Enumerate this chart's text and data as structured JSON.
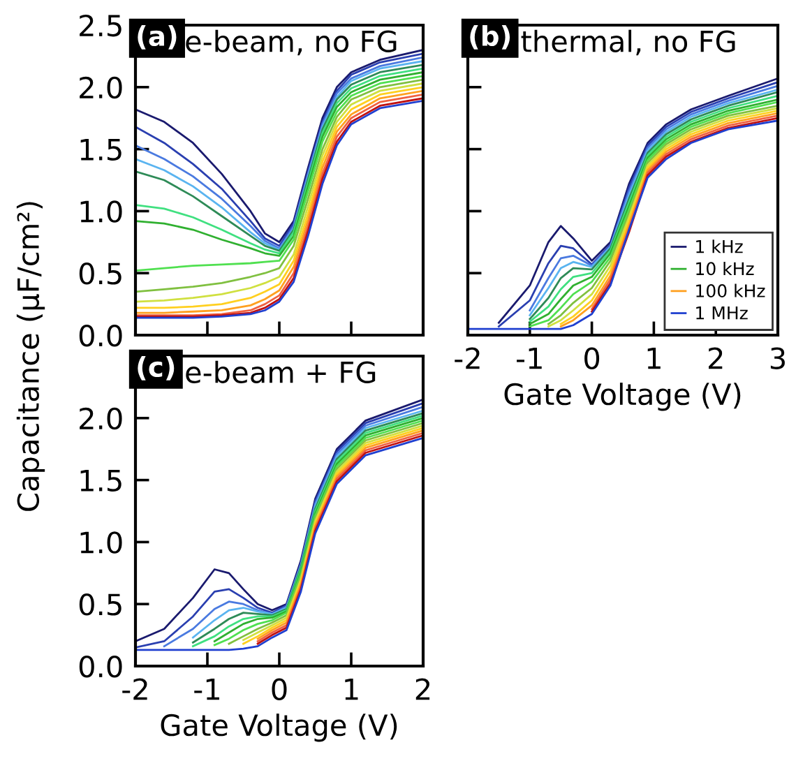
{
  "chart_data": [
    {
      "type": "line",
      "title": "e-beam, no FG",
      "annotations": [
        "(a)"
      ],
      "ylabel": "Capacitance (µF/cm²)",
      "tick_labels": "y",
      "grid": false,
      "legend": false,
      "x": [
        -2,
        -1.6,
        -1.2,
        -0.8,
        -0.4,
        -0.2,
        0,
        0.2,
        0.4,
        0.6,
        0.8,
        1.0,
        1.4,
        2.0
      ],
      "xlim": [
        -2,
        2
      ],
      "xticks": [
        -2,
        -1,
        0,
        1,
        2
      ],
      "ylim": [
        0,
        2.5
      ],
      "yticks": [
        {
          "value": 0,
          "label": "0.0"
        },
        {
          "value": 0.5,
          "label": "0.5"
        },
        {
          "value": 1,
          "label": "1.0"
        },
        {
          "value": 1.5,
          "label": "1.5"
        },
        {
          "value": 2,
          "label": "2.0"
        },
        {
          "value": 2.5,
          "label": "2.5"
        }
      ],
      "series": [
        {
          "color": "#1a1a6e",
          "values": [
            1.82,
            1.72,
            1.55,
            1.3,
            1.0,
            0.82,
            0.75,
            0.92,
            1.35,
            1.75,
            2.0,
            2.12,
            2.22,
            2.3
          ]
        },
        {
          "color": "#2a3fb0",
          "values": [
            1.68,
            1.55,
            1.38,
            1.18,
            0.92,
            0.78,
            0.72,
            0.9,
            1.32,
            1.72,
            1.97,
            2.1,
            2.2,
            2.27
          ]
        },
        {
          "color": "#4a7ae0",
          "values": [
            1.53,
            1.42,
            1.28,
            1.1,
            0.88,
            0.76,
            0.7,
            0.88,
            1.3,
            1.7,
            1.95,
            2.07,
            2.17,
            2.24
          ]
        },
        {
          "color": "#5ab4f0",
          "values": [
            1.42,
            1.33,
            1.2,
            1.03,
            0.83,
            0.74,
            0.69,
            0.86,
            1.28,
            1.68,
            1.92,
            2.05,
            2.15,
            2.21
          ]
        },
        {
          "color": "#2e8b57",
          "values": [
            1.32,
            1.25,
            1.12,
            0.96,
            0.8,
            0.72,
            0.68,
            0.85,
            1.26,
            1.66,
            1.9,
            2.02,
            2.12,
            2.18
          ]
        },
        {
          "color": "#40e080",
          "values": [
            1.05,
            1.02,
            0.95,
            0.85,
            0.74,
            0.69,
            0.66,
            0.83,
            1.23,
            1.63,
            1.87,
            1.99,
            2.09,
            2.15
          ]
        },
        {
          "color": "#30b030",
          "values": [
            0.92,
            0.9,
            0.85,
            0.77,
            0.7,
            0.66,
            0.64,
            0.8,
            1.2,
            1.6,
            1.84,
            1.96,
            2.06,
            2.12
          ]
        },
        {
          "color": "#50e050",
          "values": [
            0.52,
            0.54,
            0.56,
            0.57,
            0.58,
            0.59,
            0.6,
            0.77,
            1.16,
            1.56,
            1.8,
            1.93,
            2.03,
            2.09
          ]
        },
        {
          "color": "#80c040",
          "values": [
            0.35,
            0.37,
            0.39,
            0.42,
            0.47,
            0.5,
            0.54,
            0.72,
            1.1,
            1.5,
            1.76,
            1.9,
            2.0,
            2.06
          ]
        },
        {
          "color": "#d0e040",
          "values": [
            0.27,
            0.28,
            0.3,
            0.33,
            0.38,
            0.42,
            0.47,
            0.65,
            1.04,
            1.45,
            1.72,
            1.86,
            1.97,
            2.03
          ]
        },
        {
          "color": "#ffd020",
          "values": [
            0.22,
            0.22,
            0.23,
            0.25,
            0.3,
            0.35,
            0.41,
            0.6,
            0.98,
            1.4,
            1.68,
            1.82,
            1.94,
            2.0
          ]
        },
        {
          "color": "#ffa020",
          "values": [
            0.18,
            0.18,
            0.19,
            0.2,
            0.24,
            0.29,
            0.36,
            0.55,
            0.93,
            1.35,
            1.64,
            1.78,
            1.91,
            1.97
          ]
        },
        {
          "color": "#f06040",
          "values": [
            0.16,
            0.16,
            0.16,
            0.17,
            0.2,
            0.25,
            0.32,
            0.5,
            0.88,
            1.3,
            1.6,
            1.75,
            1.88,
            1.94
          ]
        },
        {
          "color": "#c01010",
          "values": [
            0.15,
            0.15,
            0.15,
            0.16,
            0.18,
            0.22,
            0.29,
            0.46,
            0.84,
            1.26,
            1.56,
            1.72,
            1.85,
            1.91
          ]
        },
        {
          "color": "#2040d0",
          "values": [
            0.14,
            0.14,
            0.14,
            0.15,
            0.17,
            0.2,
            0.27,
            0.43,
            0.8,
            1.22,
            1.53,
            1.7,
            1.83,
            1.89
          ]
        }
      ]
    },
    {
      "type": "line",
      "title": "thermal, no FG",
      "annotations": [
        "(b)"
      ],
      "xlabel": "Gate Voltage (V)",
      "tick_labels": "x",
      "grid": false,
      "legend": "bottom right",
      "x": [
        -2,
        -1.5,
        -1,
        -0.7,
        -0.5,
        -0.3,
        0,
        0.3,
        0.6,
        0.9,
        1.2,
        1.6,
        2.2,
        3
      ],
      "xlim": [
        -2,
        3
      ],
      "xticks": [
        -2,
        -1,
        0,
        1,
        2,
        3
      ],
      "ylim": [
        0,
        2.5
      ],
      "yticks": [
        0,
        0.5,
        1,
        1.5,
        2,
        2.5
      ],
      "series": [
        {
          "name": "1 kHz",
          "color": "#1a1a6e",
          "values": [
            null,
            0.1,
            0.4,
            0.75,
            0.88,
            0.78,
            0.6,
            0.75,
            1.22,
            1.55,
            1.7,
            1.82,
            1.93,
            2.07
          ]
        },
        {
          "color": "#2a3fb0",
          "values": [
            null,
            0.07,
            0.28,
            0.58,
            0.72,
            0.7,
            0.57,
            0.73,
            1.19,
            1.53,
            1.68,
            1.8,
            1.91,
            2.04
          ]
        },
        {
          "color": "#4a7ae0",
          "values": [
            null,
            null,
            0.2,
            0.46,
            0.62,
            0.64,
            0.56,
            0.72,
            1.16,
            1.51,
            1.66,
            1.78,
            1.89,
            2.01
          ]
        },
        {
          "color": "#5ab4f0",
          "values": [
            null,
            null,
            0.16,
            0.38,
            0.54,
            0.59,
            0.55,
            0.71,
            1.13,
            1.49,
            1.64,
            1.76,
            1.87,
            1.98
          ]
        },
        {
          "color": "#2e8b57",
          "values": [
            null,
            null,
            0.13,
            0.3,
            0.46,
            0.54,
            0.53,
            0.7,
            1.1,
            1.47,
            1.62,
            1.74,
            1.85,
            1.96
          ]
        },
        {
          "color": "#40e080",
          "values": [
            null,
            null,
            0.11,
            0.23,
            0.37,
            0.47,
            0.5,
            0.68,
            1.07,
            1.45,
            1.6,
            1.72,
            1.83,
            1.93
          ]
        },
        {
          "name": "10 kHz",
          "color": "#30b030",
          "values": [
            null,
            null,
            0.09,
            0.17,
            0.29,
            0.4,
            0.47,
            0.66,
            1.04,
            1.43,
            1.58,
            1.7,
            1.81,
            1.9
          ]
        },
        {
          "color": "#50e050",
          "values": [
            null,
            null,
            0.07,
            0.12,
            0.22,
            0.33,
            0.43,
            0.63,
            1.01,
            1.41,
            1.56,
            1.68,
            1.79,
            1.88
          ]
        },
        {
          "color": "#80c040",
          "values": [
            null,
            null,
            null,
            0.09,
            0.16,
            0.26,
            0.38,
            0.6,
            0.98,
            1.39,
            1.54,
            1.66,
            1.77,
            1.85
          ]
        },
        {
          "color": "#d0e040",
          "values": [
            null,
            null,
            null,
            0.07,
            0.12,
            0.2,
            0.33,
            0.56,
            0.95,
            1.37,
            1.52,
            1.64,
            1.75,
            1.83
          ]
        },
        {
          "color": "#ffd020",
          "values": [
            null,
            null,
            null,
            null,
            0.09,
            0.15,
            0.28,
            0.52,
            0.92,
            1.35,
            1.5,
            1.62,
            1.73,
            1.81
          ]
        },
        {
          "name": "100 kHz",
          "color": "#ffa020",
          "values": [
            null,
            null,
            null,
            null,
            0.07,
            0.12,
            0.24,
            0.48,
            0.89,
            1.33,
            1.48,
            1.6,
            1.71,
            1.79
          ]
        },
        {
          "color": "#f06040",
          "values": [
            null,
            null,
            null,
            null,
            null,
            null,
            0.21,
            0.45,
            0.86,
            1.31,
            1.46,
            1.58,
            1.69,
            1.77
          ]
        },
        {
          "color": "#c01010",
          "values": [
            null,
            null,
            null,
            null,
            null,
            null,
            0.19,
            0.42,
            0.83,
            1.29,
            1.44,
            1.56,
            1.67,
            1.75
          ]
        },
        {
          "name": "1 MHz",
          "color": "#2040d0",
          "values": [
            0.05,
            0.05,
            0.05,
            0.05,
            0.05,
            0.08,
            0.17,
            0.4,
            0.85,
            1.27,
            1.42,
            1.55,
            1.66,
            1.73
          ]
        }
      ]
    },
    {
      "type": "line",
      "title": "e-beam + FG",
      "annotations": [
        "(c)"
      ],
      "xlabel": "Gate Voltage (V)",
      "grid": false,
      "legend": false,
      "x": [
        -2,
        -1.6,
        -1.2,
        -0.9,
        -0.7,
        -0.5,
        -0.3,
        -0.1,
        0.1,
        0.3,
        0.5,
        0.8,
        1.2,
        2
      ],
      "xlim": [
        -2,
        2
      ],
      "xticks": [
        -2,
        -1,
        0,
        1,
        2
      ],
      "ylim": [
        0,
        2.5
      ],
      "yticks": [
        {
          "value": 0,
          "label": "0.0"
        },
        {
          "value": 0.5,
          "label": "0.5"
        },
        {
          "value": 1,
          "label": "1.0"
        },
        {
          "value": 1.5,
          "label": "1.5"
        },
        {
          "value": 2,
          "label": "2.0"
        }
      ],
      "series": [
        {
          "color": "#1a1a6e",
          "values": [
            0.2,
            0.3,
            0.55,
            0.78,
            0.75,
            0.62,
            0.5,
            0.45,
            0.5,
            0.85,
            1.35,
            1.75,
            1.98,
            2.15
          ]
        },
        {
          "color": "#2a3fb0",
          "values": [
            0.15,
            0.2,
            0.4,
            0.6,
            0.62,
            0.55,
            0.47,
            0.43,
            0.49,
            0.83,
            1.33,
            1.73,
            1.96,
            2.12
          ]
        },
        {
          "color": "#4a7ae0",
          "values": [
            null,
            0.16,
            0.3,
            0.46,
            0.52,
            0.5,
            0.45,
            0.42,
            0.48,
            0.82,
            1.31,
            1.71,
            1.94,
            2.09
          ]
        },
        {
          "color": "#5ab4f0",
          "values": [
            null,
            null,
            0.23,
            0.37,
            0.45,
            0.47,
            0.44,
            0.42,
            0.47,
            0.81,
            1.29,
            1.69,
            1.92,
            2.06
          ]
        },
        {
          "color": "#2e8b57",
          "values": [
            null,
            null,
            0.19,
            0.3,
            0.38,
            0.43,
            0.42,
            0.41,
            0.46,
            0.8,
            1.27,
            1.67,
            1.9,
            2.04
          ]
        },
        {
          "color": "#40e080",
          "values": [
            null,
            null,
            0.16,
            0.24,
            0.32,
            0.38,
            0.4,
            0.4,
            0.45,
            0.78,
            1.25,
            1.65,
            1.88,
            2.02
          ]
        },
        {
          "color": "#30b030",
          "values": [
            null,
            null,
            null,
            0.2,
            0.27,
            0.34,
            0.38,
            0.39,
            0.44,
            0.76,
            1.23,
            1.63,
            1.86,
            2.0
          ]
        },
        {
          "color": "#50e050",
          "values": [
            null,
            null,
            null,
            0.17,
            0.22,
            0.29,
            0.34,
            0.37,
            0.43,
            0.74,
            1.21,
            1.61,
            1.84,
            1.98
          ]
        },
        {
          "color": "#80c040",
          "values": [
            null,
            null,
            null,
            null,
            0.18,
            0.24,
            0.3,
            0.35,
            0.41,
            0.72,
            1.19,
            1.59,
            1.82,
            1.96
          ]
        },
        {
          "color": "#d0e040",
          "values": [
            null,
            null,
            null,
            null,
            null,
            0.21,
            0.27,
            0.33,
            0.39,
            0.7,
            1.17,
            1.57,
            1.8,
            1.94
          ]
        },
        {
          "color": "#ffd020",
          "values": [
            null,
            null,
            null,
            null,
            null,
            0.18,
            0.24,
            0.31,
            0.37,
            0.68,
            1.15,
            1.55,
            1.78,
            1.92
          ]
        },
        {
          "color": "#ffa020",
          "values": [
            null,
            null,
            null,
            null,
            null,
            null,
            0.22,
            0.29,
            0.35,
            0.66,
            1.13,
            1.53,
            1.76,
            1.9
          ]
        },
        {
          "color": "#f06040",
          "values": [
            null,
            null,
            null,
            null,
            null,
            null,
            0.2,
            0.27,
            0.33,
            0.64,
            1.11,
            1.51,
            1.74,
            1.88
          ]
        },
        {
          "color": "#c01010",
          "values": [
            null,
            null,
            null,
            null,
            null,
            null,
            0.18,
            0.25,
            0.31,
            0.62,
            1.09,
            1.49,
            1.72,
            1.86
          ]
        },
        {
          "color": "#2040d0",
          "values": [
            0.13,
            0.13,
            0.13,
            0.13,
            0.13,
            0.14,
            0.16,
            0.23,
            0.29,
            0.6,
            1.07,
            1.47,
            1.7,
            1.84
          ]
        }
      ]
    }
  ]
}
